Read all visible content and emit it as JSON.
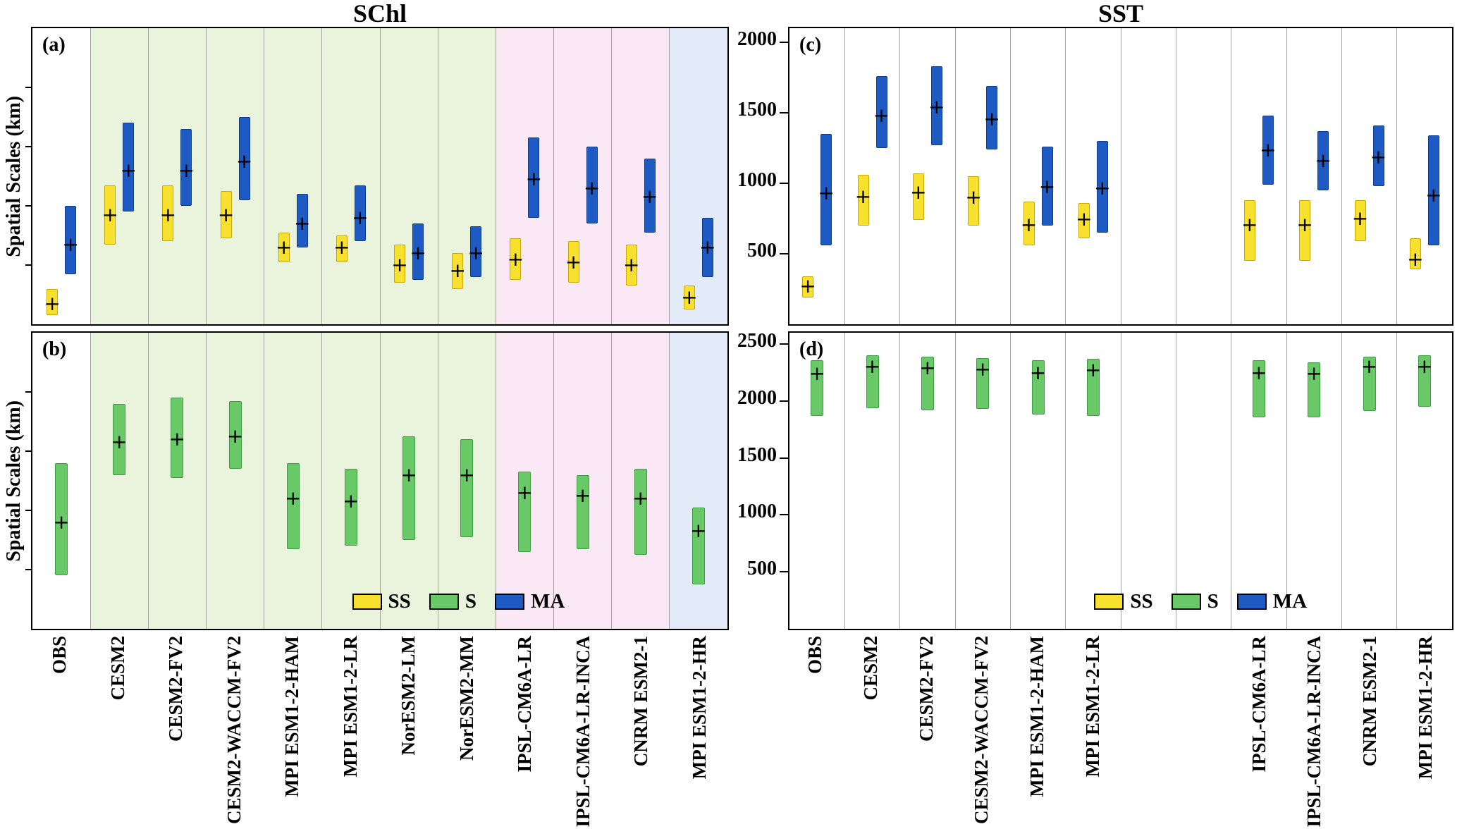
{
  "figure": {
    "left_title": "SChl",
    "right_title": "SST",
    "y_axis_label": "Spatial Scales (km)",
    "legend": {
      "items": [
        {
          "label": "SS",
          "color": "#F8E02E",
          "border": "#000000"
        },
        {
          "label": "S",
          "color": "#68C966",
          "border": "#000000"
        },
        {
          "label": "MA",
          "color": "#1E5AC4",
          "border": "#000000"
        }
      ]
    },
    "colors": {
      "ss_fill": "#F8E02E",
      "ss_edge": "#C7A900",
      "s_fill": "#68C966",
      "s_edge": "#3D9C44",
      "ma_fill": "#1E5AC4",
      "ma_edge": "#123C87",
      "band_cesm_nor": "#EAF4DC",
      "band_ipsl_cnrm": "#FAE8F4",
      "band_mpi_hr": "#E3EBF8",
      "gridline": "#A3A3A3"
    }
  },
  "chart_data": [
    {
      "id": "a",
      "panel_label": "(a)",
      "type": "bar",
      "subtype": "floating-range-bars",
      "group_title": "SChl",
      "ylabel": "Spatial Scales (km)",
      "ylim": [
        0,
        1
      ],
      "yticks": [
        0.2,
        0.4,
        0.6,
        0.8
      ],
      "show_ytick_labels": false,
      "note": "No numeric y tick labels are visible for this panel; ranges are normalized fractions of panel height",
      "categories": [
        "OBS",
        "CESM2",
        "CESM2-FV2",
        "CESM2-WACCM-FV2",
        "MPI ESM1-2-HAM",
        "MPI ESM1-2-LR",
        "NorESM2-LM",
        "NorESM2-MM",
        "IPSL-CM6A-LR",
        "IPSL-CM6A-LR-INCA",
        "CNRM ESM2-1",
        "MPI ESM1-2-HR"
      ],
      "bands": [
        {
          "start_index": 1,
          "end_index": 8,
          "color_key": "band_cesm_nor"
        },
        {
          "start_index": 8,
          "end_index": 11,
          "color_key": "band_ipsl_cnrm"
        },
        {
          "start_index": 11,
          "end_index": 12,
          "color_key": "band_mpi_hr"
        }
      ],
      "series": [
        {
          "name": "SS",
          "fill": "#F8E02E",
          "edge": "#C7A900",
          "ranges": [
            [
              0.03,
              0.12
            ],
            [
              0.27,
              0.47
            ],
            [
              0.28,
              0.47
            ],
            [
              0.29,
              0.45
            ],
            [
              0.21,
              0.31
            ],
            [
              0.21,
              0.3
            ],
            [
              0.14,
              0.27
            ],
            [
              0.12,
              0.24
            ],
            [
              0.15,
              0.29
            ],
            [
              0.14,
              0.28
            ],
            [
              0.13,
              0.27
            ],
            [
              0.05,
              0.13
            ]
          ],
          "means": [
            0.07,
            0.37,
            0.37,
            0.37,
            0.26,
            0.26,
            0.2,
            0.18,
            0.22,
            0.21,
            0.2,
            0.09
          ]
        },
        {
          "name": "MA",
          "fill": "#1E5AC4",
          "edge": "#123C87",
          "ranges": [
            [
              0.17,
              0.4
            ],
            [
              0.38,
              0.68
            ],
            [
              0.4,
              0.66
            ],
            [
              0.42,
              0.7
            ],
            [
              0.26,
              0.44
            ],
            [
              0.28,
              0.47
            ],
            [
              0.15,
              0.34
            ],
            [
              0.16,
              0.33
            ],
            [
              0.36,
              0.63
            ],
            [
              0.34,
              0.6
            ],
            [
              0.31,
              0.56
            ],
            [
              0.16,
              0.36
            ]
          ],
          "means": [
            0.27,
            0.52,
            0.52,
            0.55,
            0.34,
            0.36,
            0.24,
            0.24,
            0.49,
            0.46,
            0.43,
            0.26
          ]
        }
      ],
      "show_legend": false
    },
    {
      "id": "b",
      "panel_label": "(b)",
      "type": "bar",
      "subtype": "floating-range-bars",
      "group_title": "SChl",
      "ylabel": "Spatial Scales (km)",
      "ylim": [
        0,
        1
      ],
      "yticks": [
        0.2,
        0.4,
        0.6,
        0.8
      ],
      "show_ytick_labels": false,
      "note": "No numeric y tick labels are visible for this panel; ranges are normalized fractions of panel height",
      "categories": [
        "OBS",
        "CESM2",
        "CESM2-FV2",
        "CESM2-WACCM-FV2",
        "MPI ESM1-2-HAM",
        "MPI ESM1-2-LR",
        "NorESM2-LM",
        "NorESM2-MM",
        "IPSL-CM6A-LR",
        "IPSL-CM6A-LR-INCA",
        "CNRM ESM2-1",
        "MPI ESM1-2-HR"
      ],
      "bands": [
        {
          "start_index": 1,
          "end_index": 8,
          "color_key": "band_cesm_nor"
        },
        {
          "start_index": 8,
          "end_index": 11,
          "color_key": "band_ipsl_cnrm"
        },
        {
          "start_index": 11,
          "end_index": 12,
          "color_key": "band_mpi_hr"
        }
      ],
      "series": [
        {
          "name": "S",
          "fill": "#68C966",
          "edge": "#3D9C44",
          "ranges": [
            [
              0.18,
              0.56
            ],
            [
              0.52,
              0.76
            ],
            [
              0.51,
              0.78
            ],
            [
              0.54,
              0.77
            ],
            [
              0.27,
              0.56
            ],
            [
              0.28,
              0.54
            ],
            [
              0.3,
              0.65
            ],
            [
              0.31,
              0.64
            ],
            [
              0.26,
              0.53
            ],
            [
              0.27,
              0.52
            ],
            [
              0.25,
              0.54
            ],
            [
              0.15,
              0.41
            ]
          ],
          "means": [
            0.36,
            0.63,
            0.64,
            0.65,
            0.44,
            0.43,
            0.52,
            0.52,
            0.46,
            0.45,
            0.44,
            0.33
          ]
        }
      ],
      "show_legend": true
    },
    {
      "id": "c",
      "panel_label": "(c)",
      "type": "bar",
      "subtype": "floating-range-bars",
      "group_title": "SST",
      "ylabel": "",
      "units": "km",
      "ylim": [
        0,
        2100
      ],
      "yticks": [
        500,
        1000,
        1500,
        2000
      ],
      "show_ytick_labels": true,
      "categories": [
        "OBS",
        "CESM2",
        "CESM2-FV2",
        "CESM2-WACCM-FV2",
        "MPI ESM1-2-HAM",
        "MPI ESM1-2-LR",
        "",
        "",
        "IPSL-CM6A-LR",
        "IPSL-CM6A-LR-INCA",
        "CNRM ESM2-1",
        "MPI ESM1-2-HR"
      ],
      "bands": [],
      "series": [
        {
          "name": "SS",
          "fill": "#F8E02E",
          "edge": "#C7A900",
          "ranges": [
            [
              190,
              340
            ],
            [
              700,
              1060
            ],
            [
              740,
              1070
            ],
            [
              700,
              1050
            ],
            [
              560,
              870
            ],
            [
              610,
              860
            ],
            null,
            null,
            [
              450,
              880
            ],
            [
              450,
              880
            ],
            [
              590,
              880
            ],
            [
              390,
              610
            ]
          ],
          "means": [
            270,
            905,
            935,
            900,
            705,
            745,
            null,
            null,
            705,
            705,
            750,
            460
          ]
        },
        {
          "name": "MA",
          "fill": "#1E5AC4",
          "edge": "#123C87",
          "ranges": [
            [
              560,
              1350
            ],
            [
              1250,
              1760
            ],
            [
              1270,
              1830
            ],
            [
              1240,
              1690
            ],
            [
              700,
              1260
            ],
            [
              650,
              1300
            ],
            null,
            null,
            [
              990,
              1480
            ],
            [
              950,
              1370
            ],
            [
              980,
              1410
            ],
            [
              560,
              1340
            ]
          ],
          "means": [
            930,
            1480,
            1540,
            1455,
            975,
            965,
            null,
            null,
            1235,
            1160,
            1185,
            915
          ]
        }
      ],
      "show_legend": false
    },
    {
      "id": "d",
      "panel_label": "(d)",
      "type": "bar",
      "subtype": "floating-range-bars",
      "group_title": "SST",
      "ylabel": "",
      "units": "km",
      "ylim": [
        0,
        2600
      ],
      "yticks": [
        500,
        1000,
        1500,
        2000,
        2500
      ],
      "show_ytick_labels": true,
      "categories": [
        "OBS",
        "CESM2",
        "CESM2-FV2",
        "CESM2-WACCM-FV2",
        "MPI ESM1-2-HAM",
        "MPI ESM1-2-LR",
        "",
        "",
        "IPSL-CM6A-LR",
        "IPSL-CM6A-LR-INCA",
        "CNRM ESM2-1",
        "MPI ESM1-2-HR"
      ],
      "bands": [],
      "series": [
        {
          "name": "S",
          "fill": "#68C966",
          "edge": "#3D9C44",
          "ranges": [
            [
              1870,
              2360
            ],
            [
              1940,
              2400
            ],
            [
              1920,
              2390
            ],
            [
              1930,
              2380
            ],
            [
              1880,
              2360
            ],
            [
              1870,
              2370
            ],
            null,
            null,
            [
              1860,
              2360
            ],
            [
              1860,
              2340
            ],
            [
              1910,
              2390
            ],
            [
              1950,
              2400
            ]
          ],
          "means": [
            2240,
            2300,
            2290,
            2280,
            2250,
            2270,
            null,
            null,
            2250,
            2240,
            2300,
            2300
          ]
        }
      ],
      "show_legend": true
    }
  ]
}
